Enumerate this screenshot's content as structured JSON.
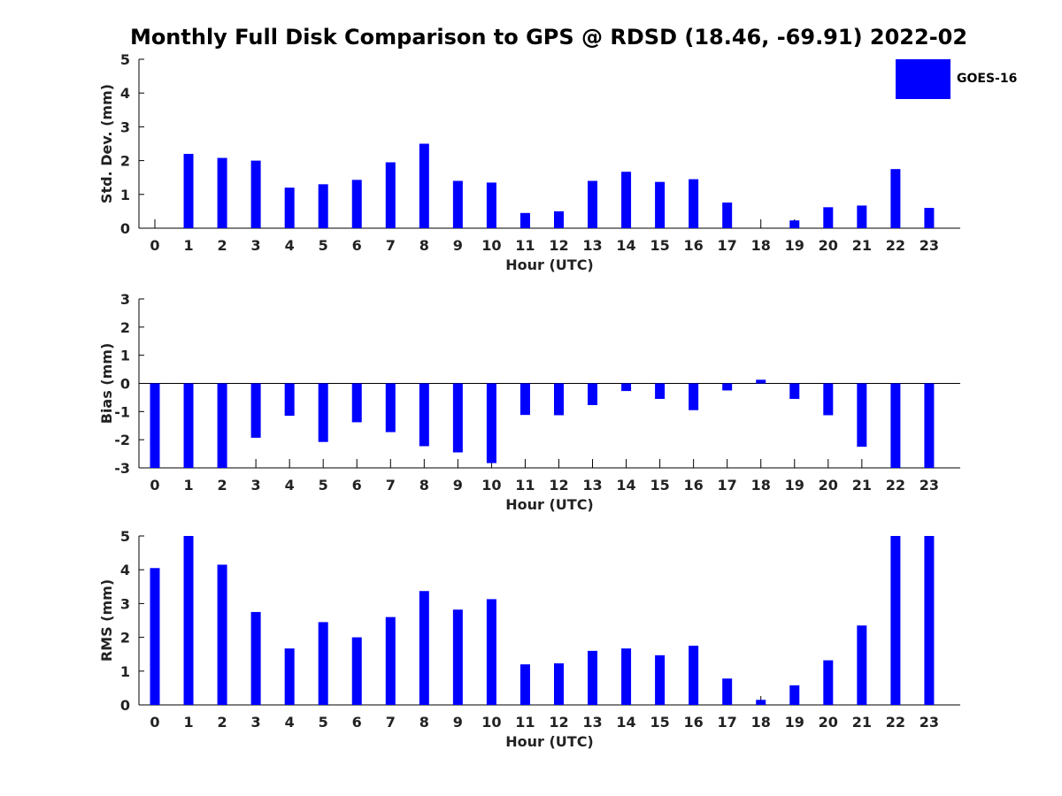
{
  "title": "Monthly Full Disk Comparison to GPS @ RDSD (18.46, -69.91) 2022-02",
  "legend": {
    "label": "GOES-16",
    "color": "#0000ff"
  },
  "chart_data": [
    {
      "type": "bar",
      "ylabel": "Std. Dev. (mm)",
      "xlabel": "Hour (UTC)",
      "ylim": [
        0,
        5
      ],
      "yticks": [
        0,
        1,
        2,
        3,
        4,
        5
      ],
      "categories": [
        "0",
        "1",
        "2",
        "3",
        "4",
        "5",
        "6",
        "7",
        "8",
        "9",
        "10",
        "11",
        "12",
        "13",
        "14",
        "15",
        "16",
        "17",
        "18",
        "19",
        "20",
        "21",
        "22",
        "23"
      ],
      "series": [
        {
          "name": "GOES-16",
          "values": [
            null,
            2.2,
            2.08,
            2.0,
            1.2,
            1.3,
            1.43,
            1.95,
            2.5,
            1.4,
            1.35,
            0.45,
            0.5,
            1.4,
            1.67,
            1.37,
            1.45,
            0.76,
            null,
            0.23,
            0.62,
            0.67,
            1.75,
            0.6
          ]
        }
      ]
    },
    {
      "type": "bar",
      "ylabel": "Bias (mm)",
      "xlabel": "Hour (UTC)",
      "ylim": [
        -3,
        3
      ],
      "yticks": [
        -3,
        -2,
        -1,
        0,
        1,
        2,
        3
      ],
      "categories": [
        "0",
        "1",
        "2",
        "3",
        "4",
        "5",
        "6",
        "7",
        "8",
        "9",
        "10",
        "11",
        "12",
        "13",
        "14",
        "15",
        "16",
        "17",
        "18",
        "19",
        "20",
        "21",
        "22",
        "23"
      ],
      "series": [
        {
          "name": "GOES-16",
          "values": [
            -3.0,
            -3.0,
            -3.0,
            -1.93,
            -1.15,
            -2.08,
            -1.38,
            -1.73,
            -2.23,
            -2.45,
            -2.83,
            -1.12,
            -1.13,
            -0.77,
            -0.27,
            -0.55,
            -0.95,
            -0.25,
            0.13,
            -0.55,
            -1.13,
            -2.25,
            -3.0,
            -3.0
          ]
        }
      ]
    },
    {
      "type": "bar",
      "ylabel": "RMS (mm)",
      "xlabel": "Hour (UTC)",
      "ylim": [
        0,
        5
      ],
      "yticks": [
        0,
        1,
        2,
        3,
        4,
        5
      ],
      "categories": [
        "0",
        "1",
        "2",
        "3",
        "4",
        "5",
        "6",
        "7",
        "8",
        "9",
        "10",
        "11",
        "12",
        "13",
        "14",
        "15",
        "16",
        "17",
        "18",
        "19",
        "20",
        "21",
        "22",
        "23"
      ],
      "series": [
        {
          "name": "GOES-16",
          "values": [
            4.05,
            5.0,
            4.15,
            2.75,
            1.67,
            2.45,
            2.0,
            2.6,
            3.37,
            2.82,
            3.13,
            1.2,
            1.23,
            1.6,
            1.67,
            1.47,
            1.75,
            0.78,
            0.15,
            0.58,
            1.32,
            2.35,
            5.0,
            5.0
          ]
        }
      ]
    }
  ]
}
